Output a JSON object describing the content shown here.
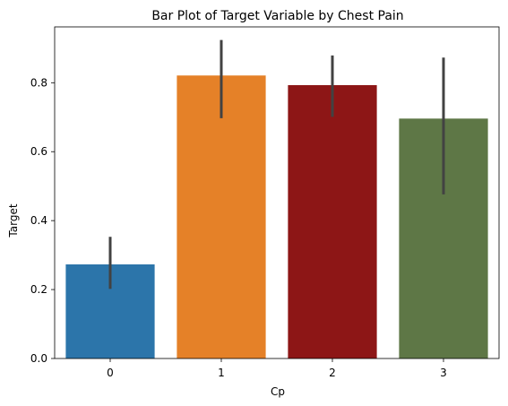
{
  "chart_data": {
    "type": "bar",
    "title": "Bar Plot of Target Variable by Chest Pain",
    "xlabel": "Cp",
    "ylabel": "Target",
    "categories": [
      "0",
      "1",
      "2",
      "3"
    ],
    "values": [
      0.273,
      0.821,
      0.793,
      0.696
    ],
    "error_low": [
      0.202,
      0.697,
      0.701,
      0.476
    ],
    "error_high": [
      0.353,
      0.924,
      0.879,
      0.873
    ],
    "bar_colors": [
      "#2c75aa",
      "#e58128",
      "#8d1616",
      "#5e7746"
    ],
    "error_bar_color": "#424242",
    "ylim": [
      0,
      0.962
    ],
    "yticks": [
      0.0,
      0.2,
      0.4,
      0.6,
      0.8
    ],
    "ytick_labels": [
      "0.0",
      "0.2",
      "0.4",
      "0.6",
      "0.8"
    ],
    "grid": false,
    "legend": "none"
  }
}
